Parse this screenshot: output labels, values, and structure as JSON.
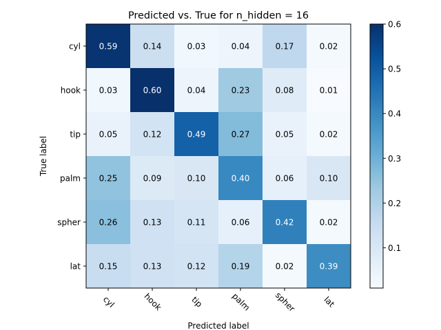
{
  "chart_data": {
    "type": "heatmap",
    "title": "Predicted vs. True for n_hidden = 16",
    "xlabel": "Predicted label",
    "ylabel": "True label",
    "x_categories": [
      "cyl",
      "hook",
      "tip",
      "palm",
      "spher",
      "lat"
    ],
    "y_categories": [
      "cyl",
      "hook",
      "tip",
      "palm",
      "spher",
      "lat"
    ],
    "values": [
      [
        0.59,
        0.14,
        0.03,
        0.04,
        0.17,
        0.02
      ],
      [
        0.03,
        0.6,
        0.04,
        0.23,
        0.08,
        0.01
      ],
      [
        0.05,
        0.12,
        0.49,
        0.27,
        0.05,
        0.02
      ],
      [
        0.25,
        0.09,
        0.1,
        0.4,
        0.06,
        0.1
      ],
      [
        0.26,
        0.13,
        0.11,
        0.06,
        0.42,
        0.02
      ],
      [
        0.15,
        0.13,
        0.12,
        0.19,
        0.02,
        0.39
      ]
    ],
    "colormap": "Blues",
    "colorbar_ticks": [
      "0.1",
      "0.2",
      "0.3",
      "0.4",
      "0.5",
      "0.6"
    ],
    "colorbar_range": [
      0.01,
      0.6
    ],
    "grid": false
  }
}
